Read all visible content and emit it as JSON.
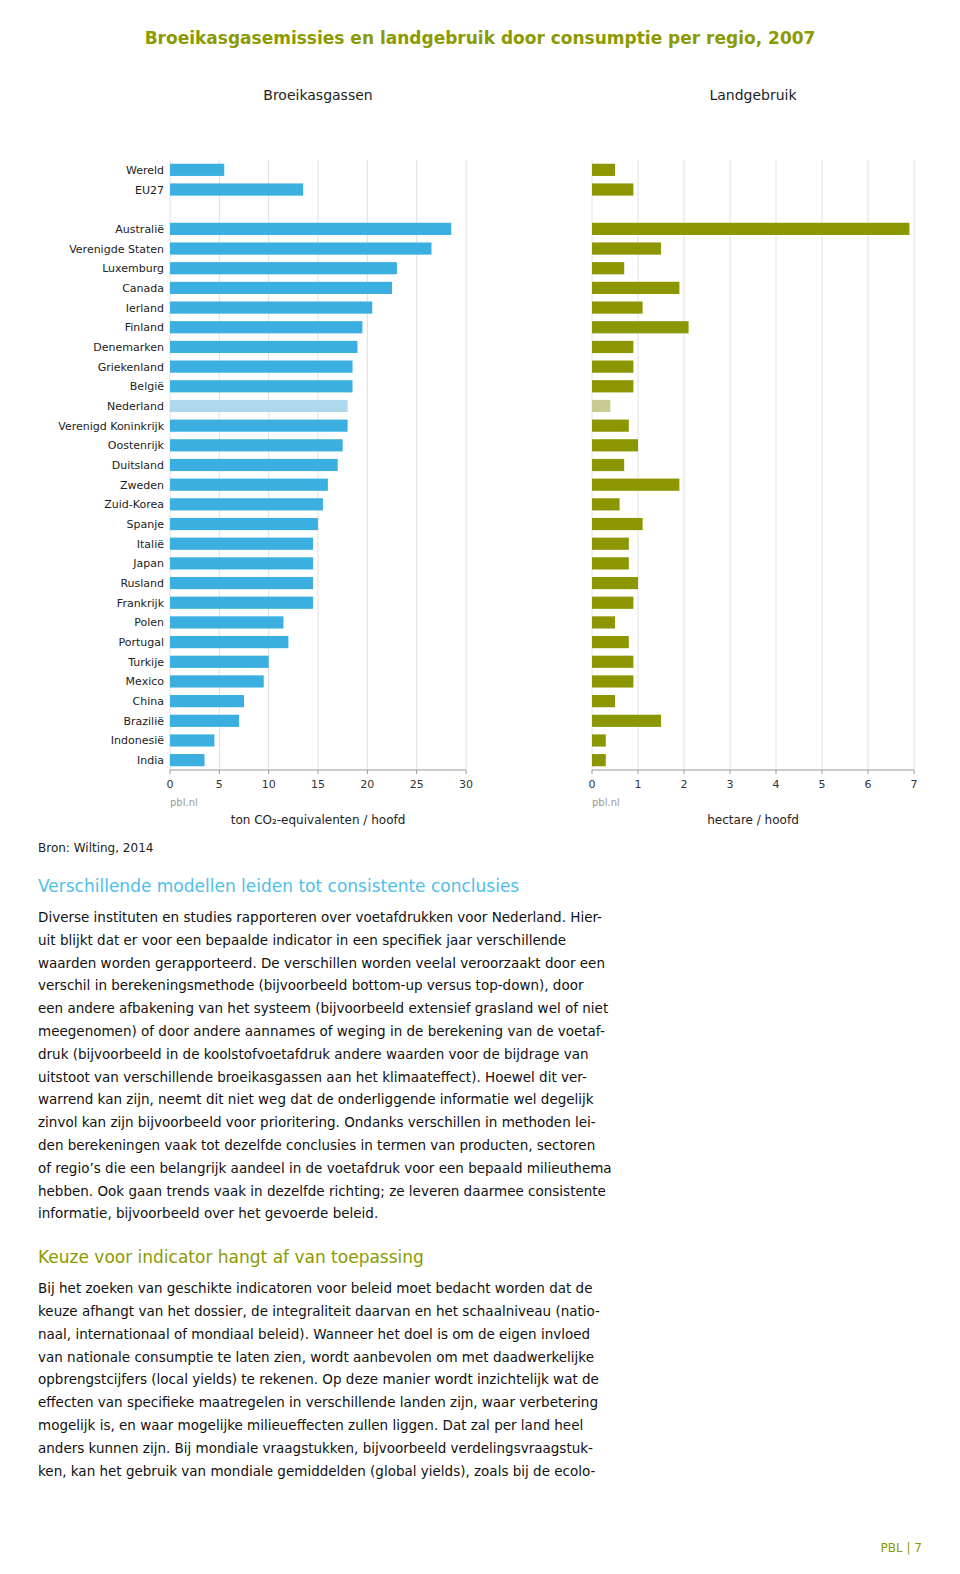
{
  "title": "Broeikasgasemissies en landgebruik door consumptie per regio, 2007",
  "title_color": "#8B9A00",
  "chart_data": [
    {
      "type": "bar",
      "orientation": "horizontal",
      "title": "Broeikasgassen",
      "categories": [
        "Wereld",
        "EU27",
        null,
        "Australië",
        "Verenigde Staten",
        "Luxemburg",
        "Canada",
        "Ierland",
        "Finland",
        "Denemarken",
        "Griekenland",
        "België",
        "Nederland",
        "Verenigd Koninkrijk",
        "Oostenrijk",
        "Duitsland",
        "Zweden",
        "Zuid-Korea",
        "Spanje",
        "Italië",
        "Japan",
        "Rusland",
        "Frankrijk",
        "Polen",
        "Portugal",
        "Turkije",
        "Mexico",
        "China",
        "Brazilië",
        "Indonesië",
        "India"
      ],
      "values": [
        5.5,
        13.5,
        0,
        28.5,
        26.5,
        23.0,
        22.5,
        20.5,
        19.5,
        19.0,
        18.5,
        18.5,
        18.0,
        18.0,
        17.5,
        17.0,
        16.0,
        15.5,
        15.0,
        14.5,
        14.5,
        14.5,
        14.5,
        11.5,
        12.0,
        10.0,
        9.5,
        7.5,
        7.0,
        4.5,
        3.5
      ],
      "colors": [
        "#3AAFE0",
        "#3AAFE0",
        "#3AAFE0",
        "#3AAFE0",
        "#3AAFE0",
        "#3AAFE0",
        "#3AAFE0",
        "#3AAFE0",
        "#3AAFE0",
        "#3AAFE0",
        "#3AAFE0",
        "#3AAFE0",
        "#B0D8EC",
        "#3AAFE0",
        "#3AAFE0",
        "#3AAFE0",
        "#3AAFE0",
        "#3AAFE0",
        "#3AAFE0",
        "#3AAFE0",
        "#3AAFE0",
        "#3AAFE0",
        "#3AAFE0",
        "#3AAFE0",
        "#3AAFE0",
        "#3AAFE0",
        "#3AAFE0",
        "#3AAFE0",
        "#3AAFE0",
        "#3AAFE0",
        "#3AAFE0"
      ],
      "xlabel": "ton CO₂-equivalenten / hoofd",
      "xlim": [
        0,
        30
      ],
      "xticks": [
        0,
        5,
        10,
        15,
        20,
        25,
        30
      ],
      "grid": true,
      "annotations": [
        "pbl.nl"
      ]
    },
    {
      "type": "bar",
      "orientation": "horizontal",
      "title": "Landgebruik",
      "categories": [
        "Wereld",
        "EU27",
        null,
        "Australië",
        "Verenigde Staten",
        "Luxemburg",
        "Canada",
        "Ierland",
        "Finland",
        "Denemarken",
        "Griekenland",
        "België",
        "Nederland",
        "Verenigd Koninkrijk",
        "Oostenrijk",
        "Duitsland",
        "Zweden",
        "Zuid-Korea",
        "Spanje",
        "Italië",
        "Japan",
        "Rusland",
        "Frankrijk",
        "Polen",
        "Portugal",
        "Turkije",
        "Mexico",
        "China",
        "Brazilië",
        "Indonesië",
        "India"
      ],
      "values": [
        0.5,
        0.9,
        0,
        6.9,
        1.5,
        0.7,
        1.9,
        1.1,
        2.1,
        0.9,
        0.9,
        0.9,
        0.4,
        0.8,
        1.0,
        0.7,
        1.9,
        0.6,
        1.1,
        0.8,
        0.8,
        1.0,
        0.9,
        0.5,
        0.8,
        0.9,
        0.9,
        0.5,
        1.5,
        0.3,
        0.3
      ],
      "colors": [
        "#8B9600",
        "#8B9600",
        "#8B9600",
        "#8B9600",
        "#8B9600",
        "#8B9600",
        "#8B9600",
        "#8B9600",
        "#8B9600",
        "#8B9600",
        "#8B9600",
        "#8B9600",
        "#C8CC90",
        "#8B9600",
        "#8B9600",
        "#8B9600",
        "#8B9600",
        "#8B9600",
        "#8B9600",
        "#8B9600",
        "#8B9600",
        "#8B9600",
        "#8B9600",
        "#8B9600",
        "#8B9600",
        "#8B9600",
        "#8B9600",
        "#8B9600",
        "#8B9600",
        "#8B9600",
        "#8B9600"
      ],
      "xlabel": "hectare / hoofd",
      "xlim": [
        0,
        7
      ],
      "xticks": [
        0,
        1,
        2,
        3,
        4,
        5,
        6,
        7
      ],
      "grid": true,
      "tick_labels": "x",
      "annotations": [
        "pbl.nl"
      ]
    }
  ],
  "source": "Bron: Wilting, 2014",
  "sections": [
    {
      "heading": "Verschillende modellen leiden tot consistente conclusies",
      "color": "#4DBFEA",
      "lines": [
        "Diverse instituten en studies rapporteren over voetafdrukken voor Nederland. Hier-",
        "uit blijkt dat er voor een bepaalde indicator in een specifiek jaar verschillende",
        "waarden worden gerapporteerd. De verschillen worden veelal veroorzaakt door een",
        "verschil in berekeningsmethode (bijvoorbeeld bottom-up versus top-down), door",
        "een andere afbakening van het systeem (bijvoorbeeld extensief grasland wel of niet",
        "meegenomen) of door andere aannames of weging in de berekening van de voetaf-",
        "druk (bijvoorbeeld in de koolstofvoetafdruk andere waarden voor de bijdrage van",
        "uitstoot van verschillende broeikasgassen aan het klimaateffect). Hoewel dit ver-",
        "warrend kan zijn, neemt dit niet weg dat de onderliggende informatie wel degelijk",
        "zinvol kan zijn bijvoorbeeld voor prioritering. Ondanks verschillen in methoden lei-",
        "den berekeningen vaak tot dezelfde conclusies in termen van producten, sectoren",
        "of regio’s die een belangrijk aandeel in de voetafdruk voor een bepaald milieuthema",
        "hebben. Ook gaan trends vaak in dezelfde richting; ze leveren daarmee consistente",
        "informatie, bijvoorbeeld over het gevoerde beleid."
      ]
    },
    {
      "heading": "Keuze voor indicator hangt af van toepassing",
      "color": "#8B9A00",
      "lines": [
        "Bij het zoeken van geschikte indicatoren voor beleid moet bedacht worden dat de",
        "keuze afhangt van het dossier, de integraliteit daarvan en het schaalniveau (natio-",
        "naal, internationaal of mondiaal beleid). Wanneer het doel is om de eigen invloed",
        "van nationale consumptie te laten zien, wordt aanbevolen om met daadwerkelijke",
        "opbrengstcijfers (local yields) te rekenen. Op deze manier wordt inzichtelijk wat de",
        "effecten van specifieke maatregelen in verschillende landen zijn, waar verbetering",
        "mogelijk is, en waar mogelijke milieueffecten zullen liggen. Dat zal per land heel",
        "anders kunnen zijn. Bij mondiale vraagstukken, bijvoorbeeld verdelingsvraagstuk-",
        "ken, kan het gebruik van mondiale gemiddelden (global yields), zoals bij de ecolo-"
      ]
    }
  ],
  "page_footer": "PBL | 7"
}
